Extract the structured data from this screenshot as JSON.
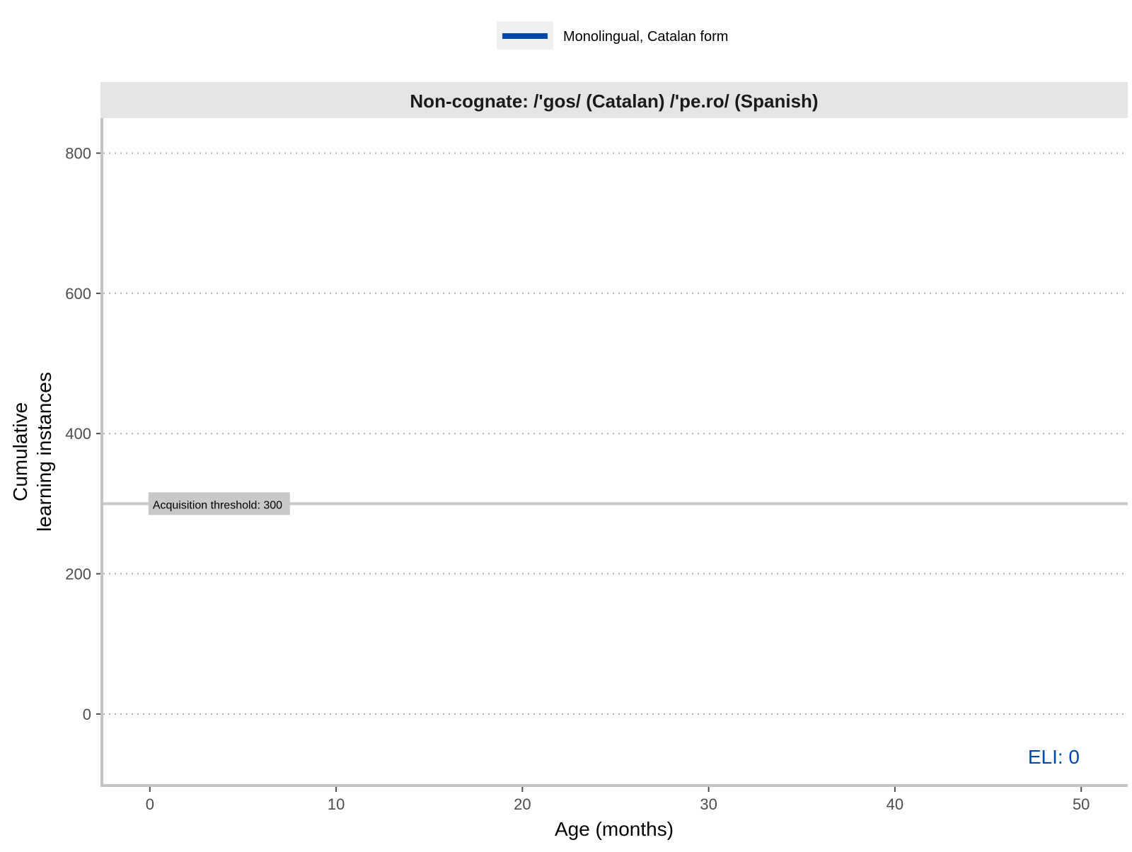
{
  "chart_data": {
    "type": "line",
    "title": "Non-cognate: /'gos/ (Catalan) /'pe.ro/ (Spanish)",
    "xlabel": "Age (months)",
    "ylabel_line1": "Cumulative",
    "ylabel_line2": "learning instances",
    "xlim": [
      -2.5,
      52.5
    ],
    "ylim": [
      -100,
      850
    ],
    "x_ticks": [
      0,
      10,
      20,
      30,
      40,
      50
    ],
    "y_ticks": [
      0,
      200,
      400,
      600,
      800
    ],
    "grid": "horizontal dotted",
    "legend_position": "top",
    "series": [
      {
        "name": "Monolingual, Catalan form",
        "color": "#0047ab",
        "x": [],
        "y": []
      }
    ],
    "threshold": {
      "value": 300,
      "label": "Acquisition threshold: 300",
      "color": "#c8c8c8"
    },
    "annotation": {
      "text": "ELI: 0",
      "color": "#0047ab",
      "position": "bottom-right"
    }
  }
}
